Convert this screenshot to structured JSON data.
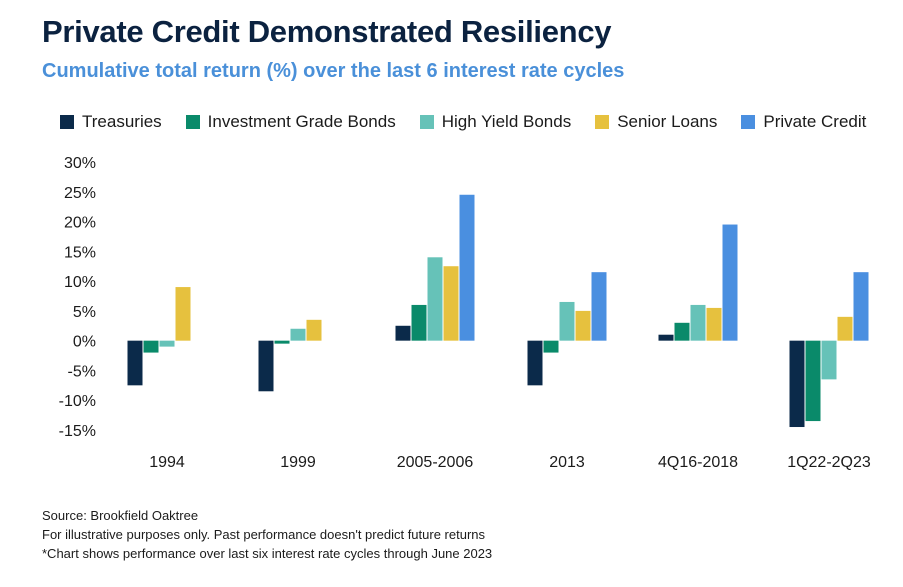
{
  "title": "Private Credit Demonstrated Resiliency",
  "subtitle": "Cumulative total return (%) over the last 6 interest rate cycles",
  "notes": [
    "Source: Brookfield Oaktree",
    "For illustrative purposes only. Past performance doesn't predict future returns",
    "*Chart shows performance over last six interest rate cycles through June 2023"
  ],
  "colors": {
    "Treasuries": "#0b2a4a",
    "Investment Grade Bonds": "#0a8a6a",
    "High Yield Bonds": "#66c2b8",
    "Senior Loans": "#e6c13e",
    "Private Credit": "#4a8fe0"
  },
  "chart_data": {
    "type": "bar",
    "categories": [
      "1994",
      "1999",
      "2005-2006",
      "2013",
      "4Q16-2018",
      "1Q22-2Q23"
    ],
    "series": [
      {
        "name": "Treasuries",
        "values": [
          -7.5,
          -8.5,
          2.5,
          -7.5,
          1.0,
          -14.5
        ]
      },
      {
        "name": "Investment Grade Bonds",
        "values": [
          -2.0,
          -0.5,
          6.0,
          -2.0,
          3.0,
          -13.5
        ]
      },
      {
        "name": "High Yield Bonds",
        "values": [
          -1.0,
          2.0,
          14.0,
          6.5,
          6.0,
          -6.5
        ]
      },
      {
        "name": "Senior Loans",
        "values": [
          9.0,
          3.5,
          12.5,
          5.0,
          5.5,
          4.0
        ]
      },
      {
        "name": "Private Credit",
        "values": [
          0,
          0,
          24.5,
          11.5,
          19.5,
          11.5
        ]
      }
    ],
    "y_ticks": [
      "30%",
      "25%",
      "20%",
      "15%",
      "10%",
      "5%",
      "0%",
      "-5%",
      "-10%",
      "-15%"
    ],
    "ylim": [
      -15,
      30
    ],
    "legend_position": "top",
    "grid": false,
    "xlabel": "",
    "ylabel": ""
  }
}
